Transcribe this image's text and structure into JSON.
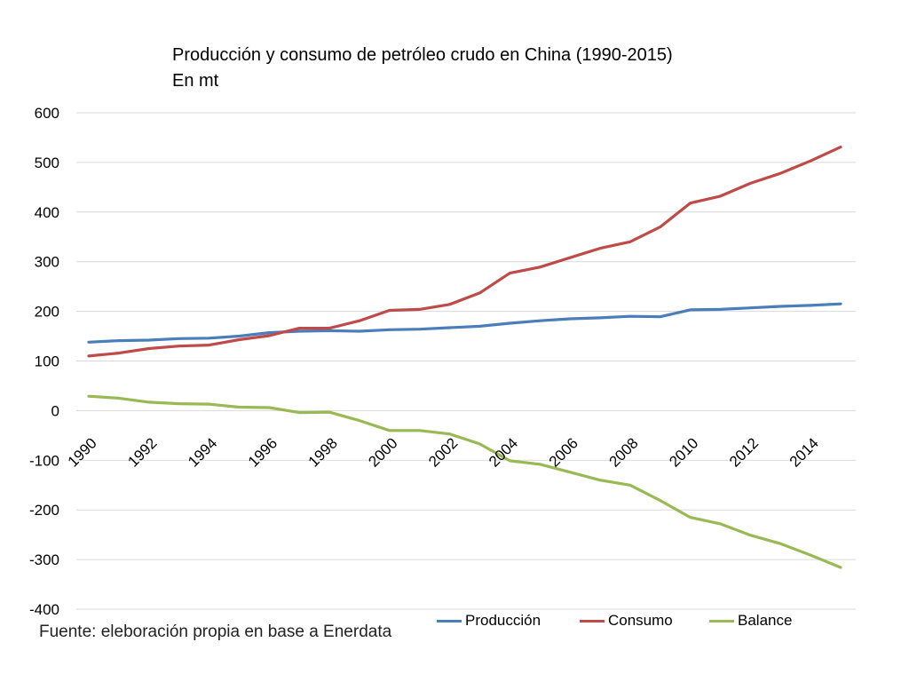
{
  "chart_data": {
    "type": "line",
    "title": "Producción y consumo de petróleo crudo en China (1990-2015)",
    "subtitle": "En mt",
    "source": "Fuente: eleboración propia en base a Enerdata",
    "xlabel": "",
    "ylabel": "",
    "ylim": [
      -400,
      600
    ],
    "yticks": [
      -400,
      -300,
      -200,
      -100,
      0,
      100,
      200,
      300,
      400,
      500,
      600
    ],
    "xlim": [
      1990,
      2015
    ],
    "xticks": [
      "1990",
      "1992",
      "1994",
      "1996",
      "1998",
      "2000",
      "2002",
      "2004",
      "2006",
      "2008",
      "2010",
      "2012",
      "2014"
    ],
    "grid": true,
    "legend_position": "bottom-right",
    "x": [
      1990,
      1991,
      1992,
      1993,
      1994,
      1995,
      1996,
      1997,
      1998,
      1999,
      2000,
      2001,
      2002,
      2003,
      2004,
      2005,
      2006,
      2007,
      2008,
      2009,
      2010,
      2011,
      2012,
      2013,
      2014,
      2015
    ],
    "series": [
      {
        "name": "Producción",
        "color": "#4a7ebb",
        "values": [
          138,
          141,
          142,
          145,
          146,
          150,
          157,
          160,
          161,
          160,
          163,
          164,
          167,
          170,
          176,
          181,
          185,
          187,
          190,
          189,
          203,
          204,
          207,
          210,
          212,
          215
        ]
      },
      {
        "name": "Consumo",
        "color": "#be4b48",
        "values": [
          110,
          116,
          125,
          130,
          132,
          143,
          151,
          166,
          166,
          181,
          202,
          204,
          214,
          237,
          277,
          289,
          308,
          327,
          340,
          370,
          418,
          432,
          458,
          478,
          503,
          531
        ]
      },
      {
        "name": "Balance",
        "color": "#98b954",
        "values": [
          29,
          25,
          17,
          14,
          13,
          7,
          6,
          -4,
          -3,
          -20,
          -40,
          -40,
          -47,
          -67,
          -101,
          -108,
          -124,
          -140,
          -150,
          -181,
          -215,
          -228,
          -251,
          -268,
          -291,
          -316
        ]
      }
    ]
  }
}
